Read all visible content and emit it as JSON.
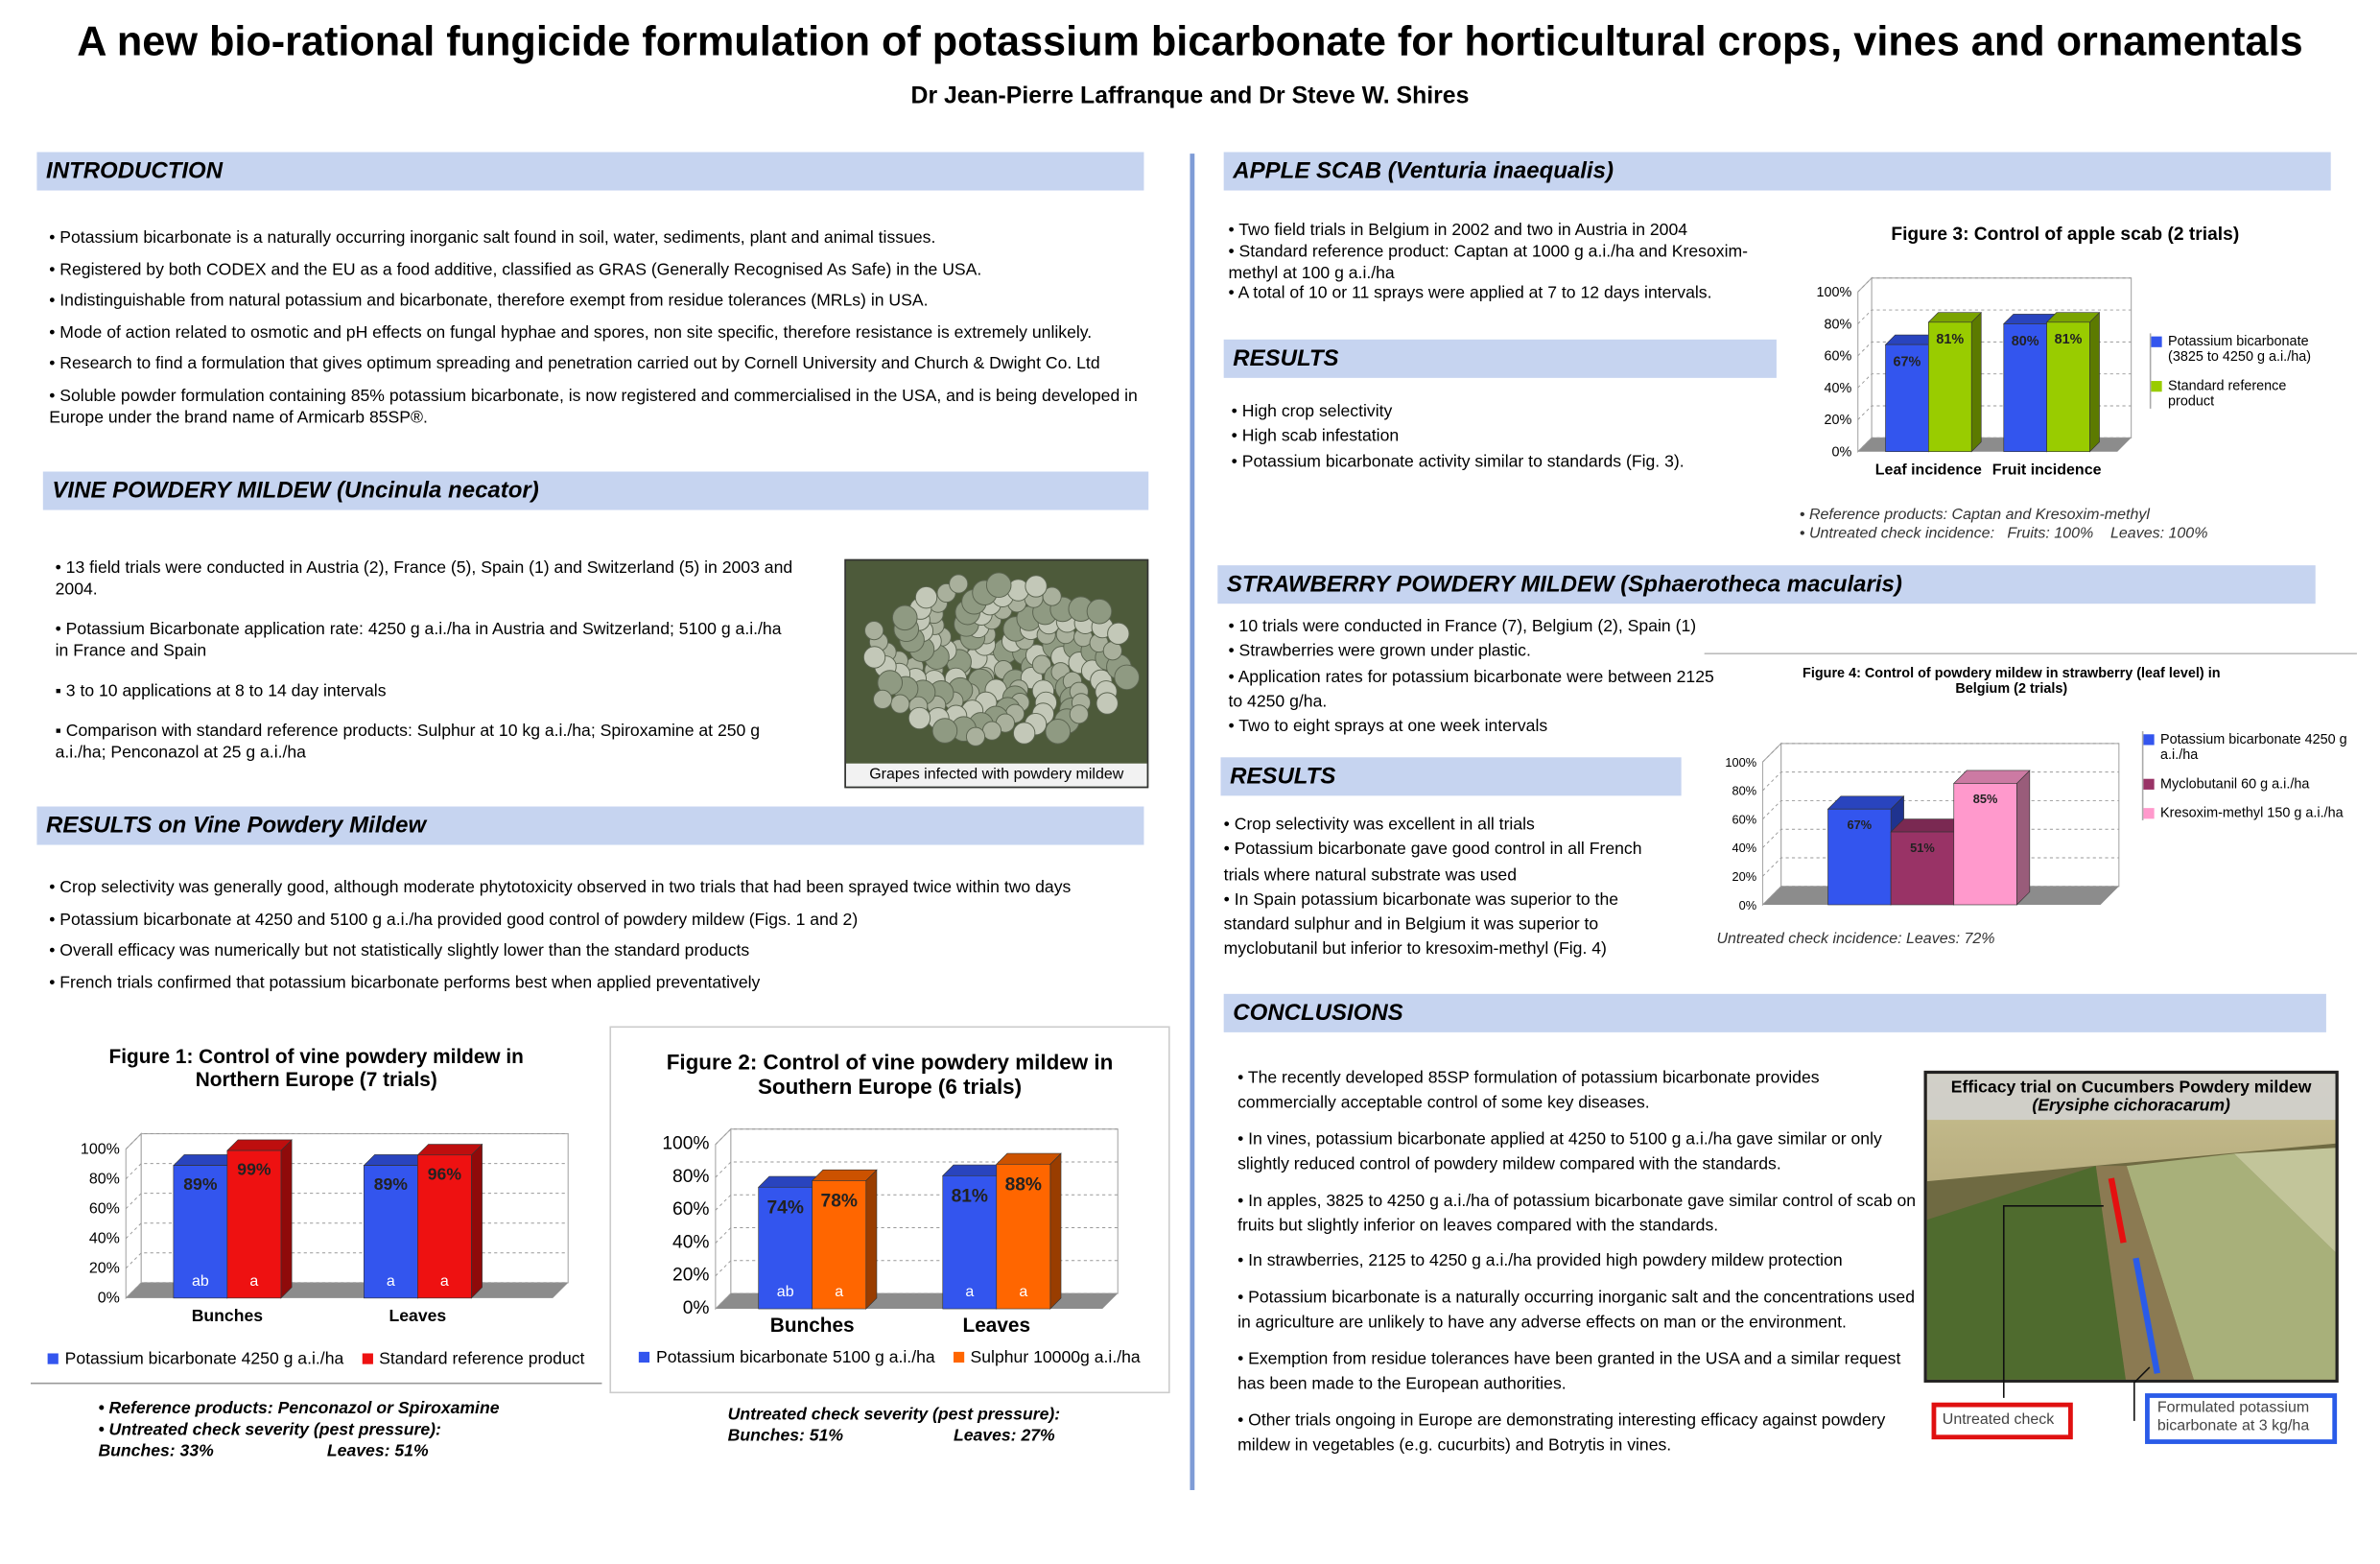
{
  "header": {
    "title": "A new bio-rational fungicide formulation of potassium bicarbonate for horticultural crops, vines and ornamentals",
    "authors": "Dr Jean-Pierre Laffranque and Dr Steve W. Shires"
  },
  "introduction": {
    "heading": "INTRODUCTION",
    "bullets": [
      "• Potassium bicarbonate is a naturally occurring inorganic salt found in soil, water, sediments, plant and animal tissues.",
      "• Registered by both CODEX and the EU as a food additive, classified as GRAS (Generally Recognised As Safe) in the USA.",
      "• Indistinguishable from natural potassium and bicarbonate, therefore exempt from residue tolerances (MRLs) in USA.",
      "• Mode of action related to osmotic and pH effects on fungal hyphae and spores, non site specific, therefore resistance is extremely unlikely.",
      "• Research to find a formulation that gives optimum spreading and penetration carried out by Cornell University and Church & Dwight Co. Ltd",
      "• Soluble powder formulation containing 85% potassium bicarbonate, is now registered and commercialised in the USA, and is being developed in Europe under the brand name of  Armicarb 85SP®."
    ]
  },
  "vine": {
    "heading": "VINE POWDERY MILDEW (Uncinula necator)",
    "bullets": [
      "• 13 field trials were conducted in Austria (2), France (5), Spain (1) and Switzerland (5) in 2003 and 2004.",
      "• Potassium Bicarbonate application rate: 4250 g a.i./ha in Austria and Switzerland; 5100 g a.i./ha in France and Spain",
      "▪ 3 to 10 applications at 8 to 14 day intervals",
      "▪ Comparison with standard reference products: Sulphur at 10 kg a.i./ha; Spiroxamine at 250 g a.i./ha; Penconazol at 25 g a.i./ha"
    ],
    "image_caption": "Grapes infected with powdery mildew"
  },
  "vine_results": {
    "heading": "RESULTS on Vine Powdery Mildew",
    "bullets": [
      "• Crop selectivity was generally good, although moderate phytotoxicity observed in two trials that had been sprayed twice within two days",
      "• Potassium bicarbonate at 4250 and 5100 g a.i./ha provided good control of powdery mildew (Figs. 1 and 2)",
      "• Overall efficacy was numerically but not statistically slightly lower than the standard products",
      "• French trials confirmed that potassium bicarbonate performs best when applied preventatively"
    ],
    "figure1_notes": [
      "• Reference products: Penconazol or Spiroxamine",
      "• Untreated check severity (pest pressure):",
      "Bunches: 33%",
      "Leaves: 51%"
    ],
    "figure2_notes": [
      "Untreated check severity (pest pressure):",
      "Bunches: 51%",
      "Leaves: 27%"
    ]
  },
  "apple": {
    "heading": "APPLE SCAB (Venturia inaequalis)",
    "bullets": [
      "• Two field trials in Belgium in 2002 and two in Austria in 2004",
      "• Standard reference product: Captan at 1000 g a.i./ha and Kresoxim-methyl at 100 g a.i./ha",
      "• A total of 10 or 11 sprays were applied at 7 to 12 days intervals."
    ],
    "results_heading": "RESULTS",
    "results_bullets": [
      "• High crop selectivity",
      "• High scab infestation",
      "• Potassium bicarbonate activity similar to standards (Fig. 3)."
    ],
    "figure3_notes": [
      "• Reference products: Captan and Kresoxim-methyl",
      "• Untreated check incidence:   Fruits: 100%    Leaves: 100%"
    ]
  },
  "strawberry": {
    "heading": "STRAWBERRY POWDERY MILDEW (Sphaerotheca macularis)",
    "bullets": [
      "• 10 trials were conducted in France (7), Belgium (2), Spain (1)",
      "• Strawberries were grown under plastic.",
      "• Application rates for potassium bicarbonate were between 2125 to 4250 g/ha.",
      "• Two to eight sprays at one week intervals"
    ],
    "results_heading": "RESULTS",
    "results_bullets": [
      "• Crop selectivity was excellent in all trials",
      "• Potassium bicarbonate gave good control in all French trials where natural substrate was used",
      "• In Spain potassium bicarbonate was superior to the standard sulphur and in Belgium it was superior to myclobutanil but inferior to kresoxim-methyl (Fig. 4)"
    ],
    "figure4_note": "Untreated check incidence: Leaves: 72%"
  },
  "conclusions": {
    "heading": "CONCLUSIONS",
    "bullets": [
      "• The recently developed 85SP formulation of potassium bicarbonate provides commercially acceptable control of some key diseases.",
      "• In vines, potassium bicarbonate applied at 4250 to 5100 g a.i./ha gave similar or only slightly reduced control of powdery mildew compared with the standards.",
      "• In apples, 3825 to 4250 g a.i./ha of potassium bicarbonate gave similar control of scab on fruits but slightly inferior on leaves compared with the standards.",
      "• In strawberries, 2125 to 4250 g a.i./ha provided high powdery mildew protection",
      "• Potassium bicarbonate is a naturally occurring inorganic salt and the concentrations used in agriculture are unlikely to have any adverse effects on man or the environment.",
      "• Exemption from residue tolerances have been granted in the USA and a similar request has been made to the European authorities.",
      "• Other trials ongoing in Europe are demonstrating interesting efficacy against powdery mildew in vegetables (e.g. cucurbits) and Botrytis in vines."
    ],
    "photo_title": "Efficacy trial on Cucumbers Powdery mildew",
    "photo_subtitle": "(Erysiphe cichoracarum)",
    "label_untreated": "Untreated check",
    "label_formulated": "Formulated potassium bicarbonate at 3 kg/ha"
  },
  "chart_data": [
    {
      "type": "bar",
      "title": "Figure 1: Control of vine powdery mildew in Northern Europe (7 trials)",
      "categories": [
        "Bunches",
        "Leaves"
      ],
      "series": [
        {
          "name": "Potassium bicarbonate 4250 g a.i./ha",
          "color": "#3355ee",
          "values": [
            89,
            89
          ],
          "value_labels": [
            "89%",
            "89%"
          ],
          "letters": [
            "ab",
            "a"
          ]
        },
        {
          "name": "Standard reference product",
          "color": "#ee1111",
          "values": [
            99,
            96
          ],
          "value_labels": [
            "99%",
            "96%"
          ],
          "letters": [
            "a",
            "a"
          ]
        }
      ],
      "ylim": [
        0,
        100
      ],
      "yticks": [
        {
          "value": 0,
          "label": "0%"
        },
        {
          "value": 20,
          "label": "20%"
        },
        {
          "value": 40,
          "label": "40%"
        },
        {
          "value": 60,
          "label": "60%"
        },
        {
          "value": 80,
          "label": "80%"
        },
        {
          "value": 100,
          "label": "100%"
        }
      ],
      "grid": true,
      "legend": "bottom"
    },
    {
      "type": "bar",
      "title": "Figure 2: Control of vine powdery mildew in Southern Europe (6 trials)",
      "categories": [
        "Bunches",
        "Leaves"
      ],
      "series": [
        {
          "name": "Potassium bicarbonate 5100 g a.i./ha",
          "color": "#3355ee",
          "values": [
            74,
            81
          ],
          "value_labels": [
            "74%",
            "81%"
          ],
          "letters": [
            "ab",
            "a"
          ]
        },
        {
          "name": "Sulphur 10000g a.i./ha",
          "color": "#ff6600",
          "values": [
            78,
            88
          ],
          "value_labels": [
            "78%",
            "88%"
          ],
          "letters": [
            "a",
            "a"
          ]
        }
      ],
      "ylim": [
        0,
        100
      ],
      "yticks": [
        {
          "value": 0,
          "label": "0%"
        },
        {
          "value": 20,
          "label": "20%"
        },
        {
          "value": 40,
          "label": "40%"
        },
        {
          "value": 60,
          "label": "60%"
        },
        {
          "value": 80,
          "label": "80%"
        },
        {
          "value": 100,
          "label": "100%"
        }
      ],
      "grid": true,
      "legend": "bottom"
    },
    {
      "type": "bar",
      "title": "Figure 3: Control of apple scab (2 trials)",
      "categories": [
        "Leaf incidence",
        "Fruit incidence"
      ],
      "series": [
        {
          "name": "Potassium bicarbonate (3825 to 4250 g a.i./ha)",
          "color": "#3355ee",
          "values": [
            67,
            80
          ],
          "value_labels": [
            "67%",
            "80%"
          ]
        },
        {
          "name": "Standard reference product",
          "color": "#99cc00",
          "values": [
            81,
            81
          ],
          "value_labels": [
            "81%",
            "81%"
          ]
        }
      ],
      "ylim": [
        0,
        100
      ],
      "yticks": [
        {
          "value": 0,
          "label": "0%"
        },
        {
          "value": 20,
          "label": "20%"
        },
        {
          "value": 40,
          "label": "40%"
        },
        {
          "value": 60,
          "label": "60%"
        },
        {
          "value": 80,
          "label": "80%"
        },
        {
          "value": 100,
          "label": "100%"
        }
      ],
      "grid": true,
      "legend": "right"
    },
    {
      "type": "bar",
      "title": "Figure 4: Control of powdery mildew in strawberry (leaf level) in Belgium (2 trials)",
      "categories": [
        null
      ],
      "series": [
        {
          "name": "Potassium bicarbonate 4250 g a.i./ha",
          "color": "#3355ee",
          "values": [
            67
          ],
          "value_labels": [
            "67%"
          ]
        },
        {
          "name": "Myclobutanil 60 g a.i./ha",
          "color": "#993366",
          "values": [
            51
          ],
          "value_labels": [
            "51%"
          ]
        },
        {
          "name": "Kresoxim-methyl 150 g a.i./ha",
          "color": "#ff99cc",
          "values": [
            85
          ],
          "value_labels": [
            "85%"
          ]
        }
      ],
      "ylim": [
        0,
        100
      ],
      "yticks": [
        {
          "value": 0,
          "label": "0%"
        },
        {
          "value": 20,
          "label": "20%"
        },
        {
          "value": 40,
          "label": "40%"
        },
        {
          "value": 60,
          "label": "60%"
        },
        {
          "value": 80,
          "label": "80%"
        },
        {
          "value": 100,
          "label": "100%"
        }
      ],
      "grid": true,
      "legend": "right"
    }
  ]
}
